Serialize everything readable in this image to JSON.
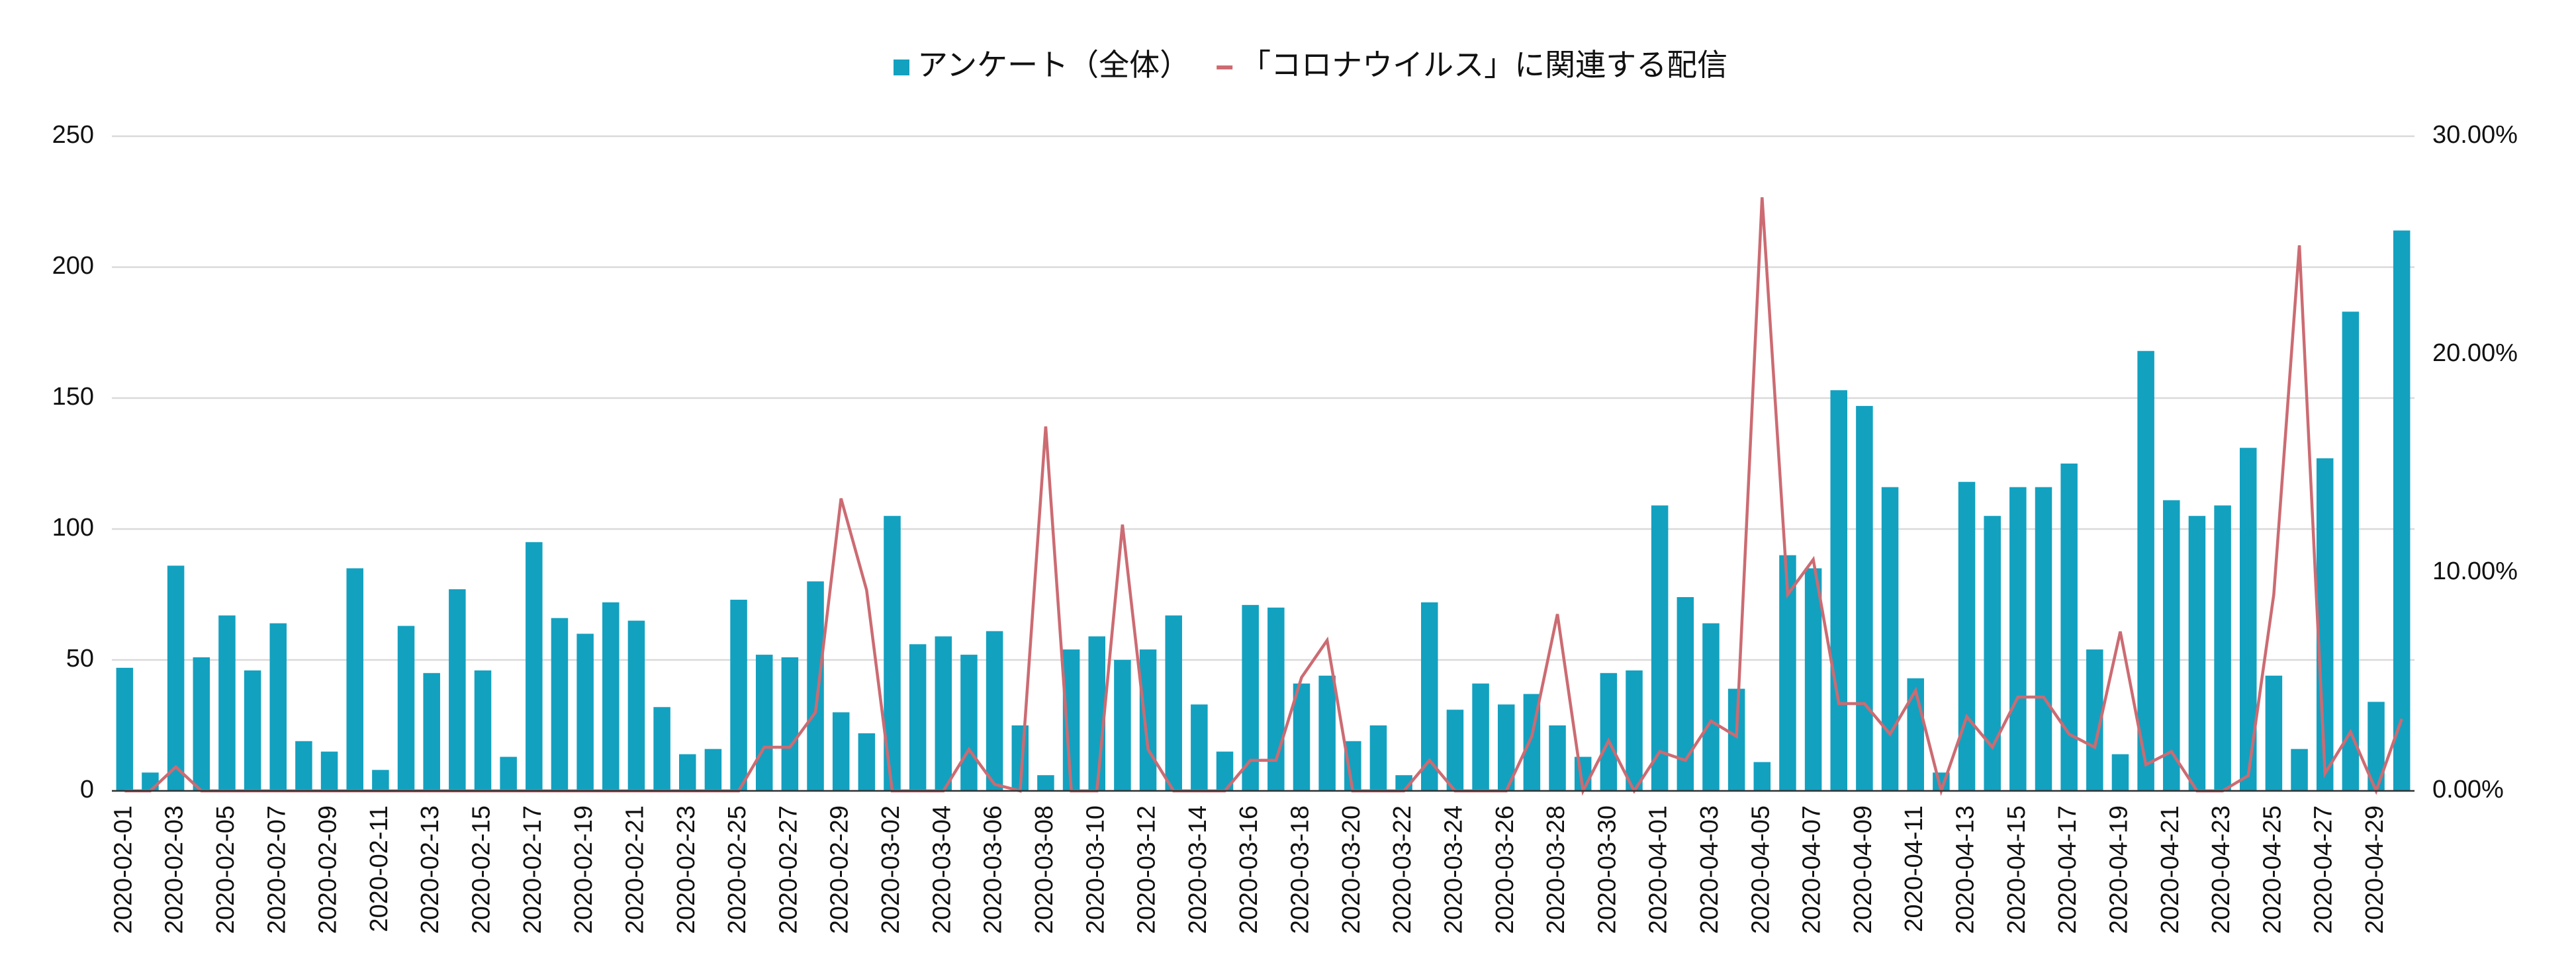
{
  "chart_data": {
    "type": "bar",
    "categories": [
      "2020-02-01",
      null,
      "2020-02-03",
      null,
      "2020-02-05",
      null,
      "2020-02-07",
      null,
      "2020-02-09",
      null,
      "2020-02-11",
      null,
      "2020-02-13",
      null,
      "2020-02-15",
      null,
      "2020-02-17",
      null,
      "2020-02-19",
      null,
      "2020-02-21",
      null,
      "2020-02-23",
      null,
      "2020-02-25",
      null,
      "2020-02-27",
      null,
      "2020-02-29",
      null,
      "2020-03-02",
      null,
      "2020-03-04",
      null,
      "2020-03-06",
      null,
      "2020-03-08",
      null,
      "2020-03-10",
      null,
      "2020-03-12",
      null,
      "2020-03-14",
      null,
      "2020-03-16",
      null,
      "2020-03-18",
      null,
      "2020-03-20",
      null,
      "2020-03-22",
      null,
      "2020-03-24",
      null,
      "2020-03-26",
      null,
      "2020-03-28",
      null,
      "2020-03-30",
      null,
      "2020-04-01",
      null,
      "2020-04-03",
      null,
      "2020-04-05",
      null,
      "2020-04-07",
      null,
      "2020-04-09",
      null,
      "2020-04-11",
      null,
      "2020-04-13",
      null,
      "2020-04-15",
      null,
      "2020-04-17",
      null,
      "2020-04-19",
      null,
      "2020-04-21",
      null,
      "2020-04-23",
      null,
      "2020-04-25",
      null,
      "2020-04-27",
      null,
      "2020-04-29",
      null
    ],
    "series": [
      {
        "name": "アンケート（全体）",
        "type": "bar",
        "color": "#13a1c0",
        "values": [
          47,
          7,
          86,
          51,
          67,
          46,
          64,
          19,
          15,
          85,
          8,
          63,
          45,
          77,
          46,
          13,
          95,
          66,
          60,
          72,
          65,
          32,
          14,
          16,
          73,
          52,
          51,
          80,
          30,
          22,
          105,
          56,
          59,
          52,
          61,
          25,
          6,
          54,
          59,
          50,
          54,
          67,
          33,
          15,
          71,
          70,
          41,
          44,
          19,
          25,
          6,
          72,
          31,
          41,
          33,
          37,
          25,
          13,
          45,
          46,
          109,
          74,
          64,
          39,
          11,
          90,
          85,
          153,
          147,
          116,
          43,
          7,
          118,
          105,
          116,
          116,
          125,
          54,
          14,
          168,
          111,
          105,
          109,
          131,
          44,
          16,
          127,
          183,
          34,
          214
        ]
      },
      {
        "name": "「コロナウイルス」に関連する配信",
        "type": "line",
        "axis": "y2",
        "color": "#cc6b72",
        "values": [
          0,
          0,
          1.1,
          0,
          0,
          0,
          0,
          0,
          0,
          0,
          0,
          0,
          0,
          0,
          0,
          0,
          0,
          0,
          0,
          0,
          0,
          0,
          0,
          0,
          0,
          2,
          2,
          3.6,
          13.4,
          9.2,
          0,
          0,
          0,
          1.9,
          0.3,
          0,
          16.7,
          0,
          0,
          12.2,
          1.9,
          0,
          0,
          0,
          1.4,
          1.4,
          5.2,
          6.9,
          0,
          0,
          0,
          1.4,
          0,
          0,
          0,
          2.5,
          8.1,
          0,
          2.3,
          0,
          1.8,
          1.4,
          3.2,
          2.5,
          27.2,
          9,
          10.6,
          4,
          4,
          2.6,
          4.6,
          0,
          3.4,
          2,
          4.3,
          4.3,
          2.6,
          2,
          7.3,
          1.2,
          1.8,
          0,
          0,
          0.7,
          9,
          25,
          0.8,
          2.7,
          0,
          3.3
        ]
      }
    ],
    "ylim": [
      0,
      250
    ],
    "yticks": [
      0,
      50,
      100,
      150,
      200,
      250
    ],
    "y2lim": [
      0,
      30
    ],
    "y2ticks": [
      {
        "value": 0,
        "label": "0.00%"
      },
      {
        "value": 10,
        "label": "10.00%"
      },
      {
        "value": 20,
        "label": "20.00%"
      },
      {
        "value": 30,
        "label": "30.00%"
      }
    ],
    "grid": true,
    "legend": "top"
  }
}
